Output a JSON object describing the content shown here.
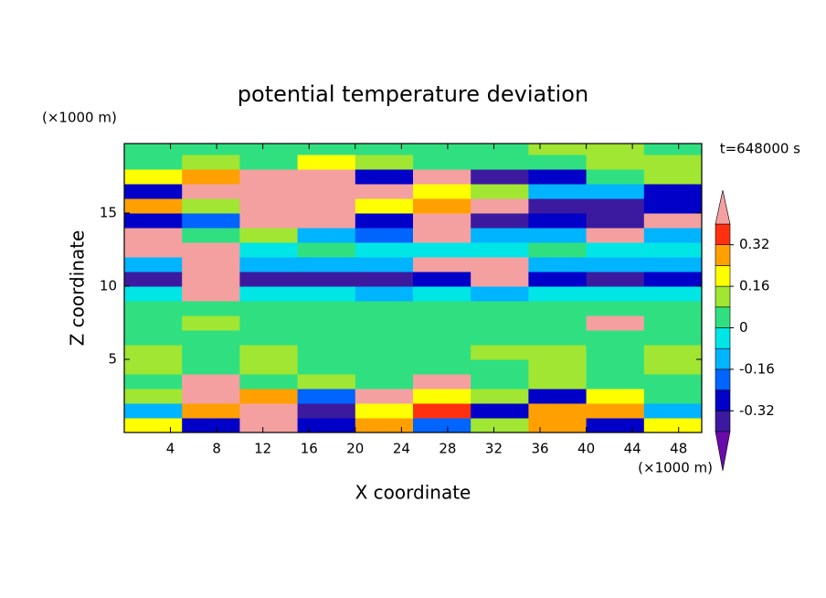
{
  "chart_data": {
    "type": "contour",
    "title": "potential temperature deviation",
    "x_label": "X coordinate",
    "y_label": "Z coordinate",
    "x_unit": "(×1000 m)",
    "y_unit": "(×1000 m)",
    "time_label": "t=648000 s",
    "xlim": [
      0,
      50
    ],
    "ylim": [
      0,
      19.75
    ],
    "xticks": [
      4,
      8,
      12,
      16,
      20,
      24,
      28,
      32,
      36,
      40,
      44,
      48
    ],
    "yticks": [
      5,
      10,
      15
    ],
    "x": [
      0,
      5,
      10,
      15,
      20,
      25,
      30,
      35,
      40,
      45,
      50
    ],
    "y": [
      0,
      1,
      2,
      3,
      4,
      5,
      6,
      7,
      8,
      9,
      10,
      11,
      12,
      13,
      14,
      15,
      16,
      17,
      18,
      19,
      19.75
    ],
    "z": [
      [
        0.2,
        -0.3,
        0.4,
        -0.3,
        0.3,
        -0.2,
        0.1,
        0.3,
        -0.3,
        0.2
      ],
      [
        -0.1,
        0.3,
        0.45,
        -0.35,
        0.2,
        0.35,
        -0.3,
        0.25,
        0.3,
        -0.1
      ],
      [
        0.1,
        0.45,
        0.3,
        -0.2,
        0.45,
        0.2,
        0.1,
        -0.3,
        0.2,
        0.05
      ],
      [
        0.05,
        0.45,
        0.05,
        0.1,
        0.05,
        0.45,
        0.05,
        0.08,
        0.02,
        0.05
      ],
      [
        0.1,
        0.05,
        0.1,
        0.06,
        0.05,
        0.05,
        0.05,
        0.1,
        0.05,
        0.1
      ],
      [
        0.1,
        0.05,
        0.1,
        0.05,
        0.02,
        0.03,
        0.1,
        0.1,
        0.05,
        0.1
      ],
      [
        0.05,
        0.05,
        0.05,
        0.05,
        0.05,
        0.05,
        0.05,
        0.05,
        0.05,
        0.05
      ],
      [
        0.05,
        0.1,
        0.05,
        0.05,
        0.02,
        0.05,
        0.05,
        0.02,
        0.45,
        0.05
      ],
      [
        0.02,
        0.05,
        0.05,
        0.05,
        0.05,
        0.05,
        0.05,
        0.05,
        0.05,
        0.02
      ],
      [
        -0.05,
        0.45,
        -0.05,
        -0.05,
        -0.1,
        -0.05,
        -0.1,
        -0.05,
        -0.05,
        -0.05
      ],
      [
        -0.35,
        0.45,
        -0.35,
        -0.35,
        -0.35,
        -0.3,
        0.45,
        -0.3,
        -0.35,
        -0.3
      ],
      [
        -0.1,
        0.45,
        -0.12,
        -0.1,
        -0.1,
        0.45,
        0.45,
        -0.1,
        -0.1,
        -0.1
      ],
      [
        0.45,
        0.45,
        -0.05,
        0.02,
        -0.05,
        -0.05,
        -0.05,
        0.02,
        -0.05,
        -0.05
      ],
      [
        0.45,
        0.05,
        0.1,
        -0.1,
        -0.2,
        0.45,
        -0.15,
        -0.1,
        0.45,
        -0.1
      ],
      [
        -0.3,
        -0.2,
        0.45,
        0.45,
        -0.3,
        0.45,
        -0.35,
        -0.3,
        -0.35,
        0.45
      ],
      [
        0.3,
        0.1,
        0.45,
        0.45,
        0.2,
        0.3,
        0.45,
        -0.4,
        -0.35,
        -0.3
      ],
      [
        -0.3,
        0.45,
        0.45,
        0.45,
        0.45,
        0.2,
        0.1,
        -0.1,
        -0.1,
        -0.3
      ],
      [
        0.2,
        0.3,
        0.45,
        0.45,
        -0.3,
        0.45,
        -0.35,
        -0.3,
        0.05,
        0.1
      ],
      [
        0.05,
        0.1,
        0.05,
        0.2,
        0.1,
        0.05,
        0.05,
        0.02,
        0.1,
        0.1
      ],
      [
        0.05,
        0.05,
        0.05,
        0.05,
        0.05,
        0.05,
        0.05,
        0.1,
        0.15,
        0.05
      ]
    ],
    "levels": [
      -0.4,
      -0.32,
      -0.24,
      -0.16,
      -0.08,
      0,
      0.08,
      0.16,
      0.24,
      0.32,
      0.4
    ],
    "colors": [
      "#6a0aab",
      "#3c1aa0",
      "#0000c8",
      "#0064ff",
      "#00b4ff",
      "#00e6e6",
      "#30e080",
      "#a0e632",
      "#ffff00",
      "#ffa000",
      "#ff3010",
      "#f4a0a0"
    ],
    "colorbar_ticks": [
      0.32,
      0.16,
      0,
      -0.16,
      -0.32
    ]
  }
}
